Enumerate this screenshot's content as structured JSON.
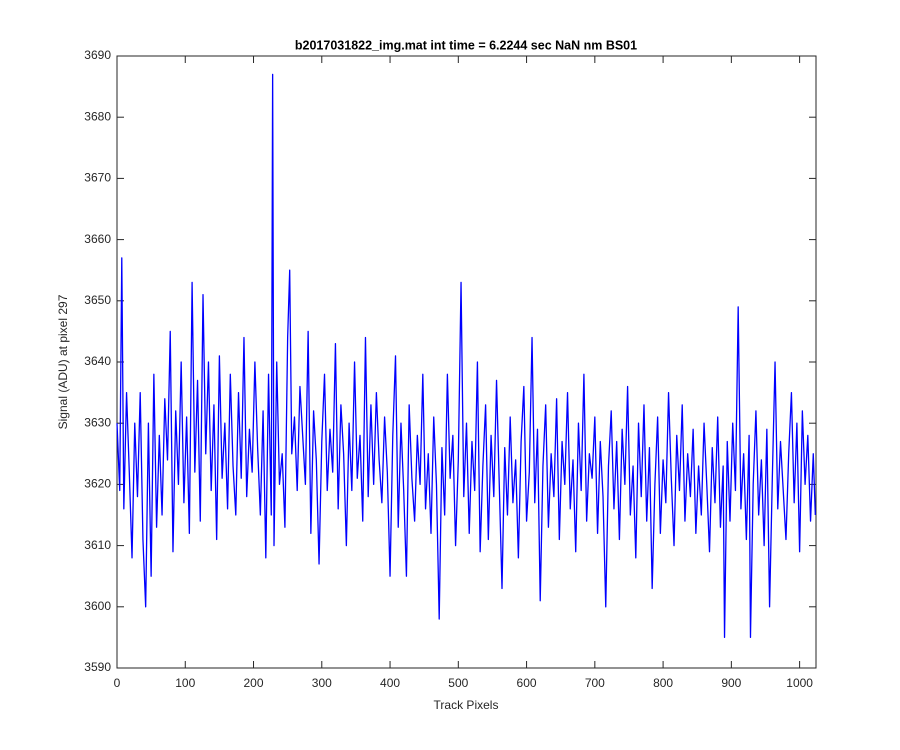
{
  "chart_data": {
    "type": "line",
    "title": "b2017031822_img.mat int time = 6.2244 sec  NaN nm BS01",
    "x_label": "Track Pixels",
    "y_label": "Signal (ADU) at pixel 297",
    "color": "#0000ff",
    "xlim": [
      0,
      1024
    ],
    "ylim": [
      3590,
      3690
    ],
    "xticks": [
      0,
      100,
      200,
      300,
      400,
      500,
      600,
      700,
      800,
      900,
      1000
    ],
    "yticks": [
      3590,
      3600,
      3610,
      3620,
      3630,
      3640,
      3650,
      3660,
      3670,
      3680,
      3690
    ],
    "grid": false,
    "x": [
      0,
      4,
      7,
      10,
      14,
      18,
      22,
      26,
      30,
      34,
      38,
      42,
      46,
      50,
      54,
      58,
      62,
      66,
      70,
      74,
      78,
      82,
      86,
      90,
      94,
      98,
      102,
      106,
      110,
      114,
      118,
      122,
      126,
      130,
      134,
      138,
      142,
      146,
      150,
      154,
      158,
      162,
      166,
      170,
      174,
      178,
      182,
      186,
      190,
      194,
      198,
      202,
      206,
      210,
      214,
      218,
      222,
      226,
      228,
      230,
      234,
      238,
      242,
      246,
      250,
      253,
      256,
      260,
      264,
      268,
      272,
      276,
      280,
      284,
      288,
      292,
      296,
      300,
      304,
      308,
      312,
      316,
      320,
      324,
      328,
      332,
      336,
      340,
      344,
      348,
      352,
      356,
      360,
      364,
      368,
      372,
      376,
      380,
      384,
      388,
      392,
      396,
      400,
      404,
      408,
      412,
      416,
      420,
      424,
      428,
      432,
      436,
      440,
      444,
      448,
      452,
      456,
      460,
      464,
      468,
      472,
      476,
      480,
      484,
      488,
      492,
      496,
      500,
      504,
      508,
      512,
      516,
      520,
      524,
      528,
      532,
      536,
      540,
      544,
      548,
      552,
      556,
      560,
      564,
      568,
      572,
      576,
      580,
      584,
      588,
      592,
      596,
      600,
      604,
      608,
      612,
      616,
      620,
      624,
      628,
      632,
      636,
      640,
      644,
      648,
      652,
      656,
      660,
      664,
      668,
      672,
      676,
      680,
      684,
      688,
      692,
      696,
      700,
      704,
      708,
      712,
      716,
      720,
      724,
      728,
      732,
      736,
      740,
      744,
      748,
      752,
      756,
      760,
      764,
      768,
      772,
      776,
      780,
      784,
      788,
      792,
      796,
      800,
      804,
      808,
      812,
      816,
      820,
      824,
      828,
      832,
      836,
      840,
      844,
      848,
      852,
      856,
      860,
      864,
      868,
      872,
      876,
      880,
      884,
      888,
      890,
      894,
      898,
      902,
      906,
      910,
      914,
      918,
      922,
      926,
      928,
      932,
      936,
      940,
      944,
      948,
      952,
      956,
      960,
      964,
      968,
      972,
      976,
      980,
      984,
      988,
      992,
      996,
      1000,
      1004,
      1008,
      1012,
      1016,
      1020,
      1023
    ],
    "values": [
      3630,
      3619,
      3657,
      3616,
      3635,
      3622,
      3608,
      3630,
      3618,
      3635,
      3611,
      3600,
      3630,
      3605,
      3638,
      3613,
      3628,
      3615,
      3634,
      3624,
      3645,
      3609,
      3632,
      3620,
      3640,
      3617,
      3631,
      3612,
      3653,
      3622,
      3637,
      3614,
      3651,
      3625,
      3640,
      3619,
      3633,
      3611,
      3641,
      3621,
      3630,
      3616,
      3638,
      3623,
      3615,
      3635,
      3621,
      3644,
      3618,
      3629,
      3622,
      3640,
      3626,
      3615,
      3632,
      3608,
      3638,
      3615,
      3687,
      3610,
      3640,
      3620,
      3625,
      3613,
      3644,
      3655,
      3625,
      3631,
      3619,
      3636,
      3628,
      3620,
      3645,
      3612,
      3632,
      3624,
      3607,
      3627,
      3638,
      3619,
      3629,
      3622,
      3643,
      3616,
      3633,
      3625,
      3610,
      3630,
      3619,
      3640,
      3621,
      3628,
      3614,
      3644,
      3618,
      3633,
      3620,
      3635,
      3624,
      3617,
      3631,
      3622,
      3605,
      3628,
      3641,
      3613,
      3630,
      3619,
      3605,
      3633,
      3621,
      3614,
      3628,
      3620,
      3638,
      3616,
      3625,
      3612,
      3631,
      3620,
      3598,
      3626,
      3615,
      3638,
      3621,
      3628,
      3610,
      3624,
      3653,
      3618,
      3630,
      3612,
      3627,
      3619,
      3640,
      3609,
      3623,
      3633,
      3611,
      3628,
      3618,
      3637,
      3620,
      3603,
      3626,
      3615,
      3631,
      3617,
      3624,
      3608,
      3627,
      3636,
      3614,
      3622,
      3644,
      3617,
      3629,
      3601,
      3623,
      3633,
      3613,
      3625,
      3618,
      3634,
      3611,
      3627,
      3620,
      3635,
      3616,
      3624,
      3609,
      3630,
      3619,
      3638,
      3614,
      3625,
      3621,
      3631,
      3612,
      3627,
      3618,
      3600,
      3623,
      3632,
      3616,
      3627,
      3611,
      3629,
      3620,
      3636,
      3615,
      3623,
      3608,
      3630,
      3618,
      3633,
      3614,
      3626,
      3603,
      3620,
      3631,
      3612,
      3624,
      3617,
      3635,
      3621,
      3610,
      3628,
      3619,
      3633,
      3614,
      3625,
      3618,
      3629,
      3612,
      3623,
      3615,
      3630,
      3620,
      3609,
      3626,
      3617,
      3631,
      3613,
      3623,
      3595,
      3627,
      3614,
      3630,
      3619,
      3649,
      3616,
      3625,
      3611,
      3628,
      3595,
      3620,
      3632,
      3615,
      3624,
      3610,
      3629,
      3600,
      3621,
      3640,
      3616,
      3627,
      3619,
      3611,
      3625,
      3635,
      3617,
      3630,
      3609,
      3632,
      3620,
      3628,
      3614,
      3625,
      3615
    ]
  }
}
